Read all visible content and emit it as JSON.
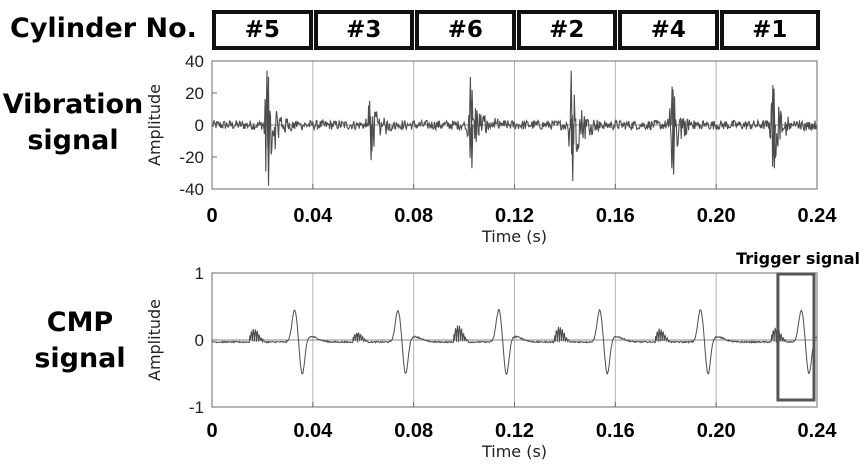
{
  "cylinder_header": {
    "title": "Cylinder No.",
    "cylinders": [
      "#5",
      "#3",
      "#6",
      "#2",
      "#4",
      "#1"
    ]
  },
  "labels": {
    "vibration_line1": "Vibration",
    "vibration_line2": "signal",
    "cmp_line1": "CMP",
    "cmp_line2": "signal",
    "trigger": "Trigger signal"
  },
  "colors": {
    "signal": "#4d4d4d",
    "grid": "#b5b5b5",
    "axis": "#6b6b6b",
    "trigger_box": "#555555",
    "cylinder_box_border": "#111111"
  },
  "chart_data": [
    {
      "type": "line",
      "xlabel": "Time (s)",
      "ylabel": "Amplitude",
      "xlim": [
        0,
        0.24
      ],
      "ylim": [
        -40,
        40
      ],
      "xticks": [
        0,
        0.04,
        0.08,
        0.12,
        0.16,
        0.2,
        0.24
      ],
      "xtick_labels": [
        "0",
        "0.04",
        "0.08",
        "0.12",
        "0.16",
        "0.20",
        "0.24"
      ],
      "yticks": [
        40,
        20,
        0,
        -20,
        -40
      ],
      "ytick_labels": [
        "40",
        "20",
        "0",
        "-20",
        "-40"
      ],
      "grid": true,
      "baseline": 0,
      "series": [
        {
          "noise_amplitude": 3,
          "bursts": [
            {
              "t": 0.0218,
              "max": 34,
              "min": -38
            },
            {
              "t": 0.0625,
              "max": 15,
              "min": -22
            },
            {
              "t": 0.1025,
              "max": 30,
              "min": -27
            },
            {
              "t": 0.1425,
              "max": 34,
              "min": -35
            },
            {
              "t": 0.1825,
              "max": 24,
              "min": -31
            },
            {
              "t": 0.2225,
              "max": 25,
              "min": -27
            }
          ]
        }
      ]
    },
    {
      "type": "line",
      "xlabel": "Time (s)",
      "ylabel": "Amplitude",
      "xlim": [
        0,
        0.24
      ],
      "ylim": [
        -1,
        1
      ],
      "xticks": [
        0,
        0.04,
        0.08,
        0.12,
        0.16,
        0.2,
        0.24
      ],
      "xtick_labels": [
        "0",
        "0.04",
        "0.08",
        "0.12",
        "0.16",
        "0.20",
        "0.24"
      ],
      "yticks": [
        1,
        0,
        -1
      ],
      "ytick_labels": [
        "1",
        "0",
        "-1"
      ],
      "grid": true,
      "baseline": 0,
      "series": [
        {
          "pulses": [
            {
              "t": 0.0328,
              "peak": 0.48,
              "trough": -0.52
            },
            {
              "t": 0.0738,
              "peak": 0.47,
              "trough": -0.52
            },
            {
              "t": 0.1138,
              "peak": 0.48,
              "trough": -0.53
            },
            {
              "t": 0.1538,
              "peak": 0.47,
              "trough": -0.52
            },
            {
              "t": 0.1938,
              "peak": 0.48,
              "trough": -0.52
            },
            {
              "t": 0.2338,
              "peak": 0.47,
              "trough": -0.52
            }
          ],
          "bumps": [
            {
              "t": 0.0168,
              "height": 0.2
            },
            {
              "t": 0.0578,
              "height": 0.15
            },
            {
              "t": 0.0978,
              "height": 0.25
            },
            {
              "t": 0.1378,
              "height": 0.23
            },
            {
              "t": 0.1778,
              "height": 0.2
            },
            {
              "t": 0.2238,
              "height": 0.22
            }
          ]
        }
      ],
      "highlight": {
        "x_range": [
          0.2245,
          0.24
        ],
        "label": "Trigger signal"
      }
    }
  ]
}
